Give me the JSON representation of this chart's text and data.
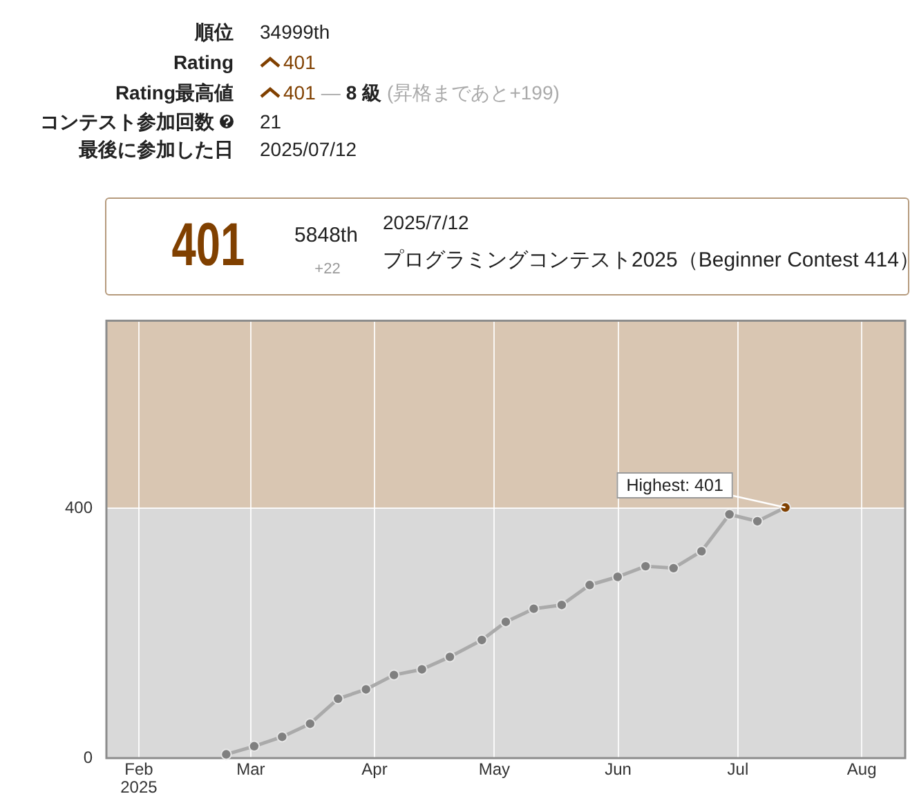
{
  "chart_data": {
    "type": "line",
    "x": [
      "2025-02-22T21:00",
      "2025-03-01T21:00",
      "2025-03-08T21:00",
      "2025-03-15T21:00",
      "2025-03-22T21:00",
      "2025-03-29T21:00",
      "2025-04-05T21:00",
      "2025-04-12T21:00",
      "2025-04-19T21:00",
      "2025-04-27T21:00",
      "2025-05-03T21:00",
      "2025-05-10T21:00",
      "2025-05-17T21:00",
      "2025-05-24T21:00",
      "2025-05-31T21:00",
      "2025-06-07T21:00",
      "2025-06-14T21:00",
      "2025-06-21T21:00",
      "2025-06-28T21:00",
      "2025-07-05T21:00",
      "2025-07-12T21:00"
    ],
    "series": [
      {
        "color": "#aaaaaa",
        "colors": [
          "#808080",
          "#808080",
          "#808080",
          "#808080",
          "#808080",
          "#808080",
          "#808080",
          "#808080",
          "#808080",
          "#808080",
          "#808080",
          "#808080",
          "#808080",
          "#808080",
          "#808080",
          "#808080",
          "#808080",
          "#808080",
          "#808080",
          "#808080",
          "#804000"
        ],
        "values": [
          6,
          19,
          34,
          55,
          95,
          110,
          133,
          142,
          162,
          189,
          218,
          239,
          245,
          277,
          290,
          307,
          304,
          331,
          390,
          379,
          401
        ]
      }
    ],
    "xlim": [
      "2025-01-23T21:00",
      "2025-08-11T21:00"
    ],
    "xticks": [
      {
        "value": "2025-02-01",
        "label": "Feb\n2025"
      },
      {
        "value": "2025-03-01",
        "label": "Mar"
      },
      {
        "value": "2025-04-01",
        "label": "Apr"
      },
      {
        "value": "2025-05-01",
        "label": "May"
      },
      {
        "value": "2025-06-01",
        "label": "Jun"
      },
      {
        "value": "2025-07-01",
        "label": "Jul"
      },
      {
        "value": "2025-08-01",
        "label": "Aug"
      }
    ],
    "ylim": [
      0,
      700
    ],
    "yticks": [
      0,
      400
    ],
    "grid": true,
    "legend": false,
    "marker": "circle",
    "line_style": "solid",
    "bands": [
      {
        "axis": "y",
        "from": 0,
        "to": 400,
        "color": "#d9d9d9"
      },
      {
        "axis": "y",
        "from": 400,
        "to": 700,
        "color": "#d9c6b2"
      }
    ],
    "annotations": [
      "順位",
      "34999th",
      "Rating",
      "401",
      "Rating最高値",
      "401",
      "―",
      "8 級",
      "(昇格まであと+199)",
      "コンテスト参加回数",
      "21",
      "最後に参加した日",
      "2025/07/12",
      "401",
      "5848th",
      "+22",
      "2025/7/12",
      "プログラミングコンテスト2025（Beginner Contest 414）",
      {
        "text": "Highest: 401",
        "x": "2025-07-12T21:00",
        "y": 401
      }
    ]
  }
}
